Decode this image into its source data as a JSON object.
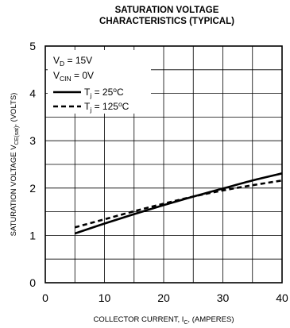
{
  "chart_data": {
    "type": "line",
    "title_line1": "SATURATION VOLTAGE",
    "title_line2": "CHARACTERISTICS (TYPICAL)",
    "xlabel": {
      "prefix": "COLLECTOR CURRENT, I",
      "sub": "C",
      "suffix": ", (AMPERES)"
    },
    "ylabel": {
      "prefix": "SATURATION VOLTAGE V",
      "sub": "CE(sat)",
      "suffix": ", (VOLTS)"
    },
    "xlim": [
      0,
      40
    ],
    "ylim": [
      0,
      5
    ],
    "x_ticks": [
      {
        "value": 0,
        "label": "0"
      },
      {
        "value": 10,
        "label": "10"
      },
      {
        "value": 20,
        "label": "20"
      },
      {
        "value": 30,
        "label": "30"
      },
      {
        "value": 40,
        "label": "40"
      }
    ],
    "y_ticks": [
      {
        "value": 0,
        "label": "0"
      },
      {
        "value": 1,
        "label": "1"
      },
      {
        "value": 2,
        "label": "2"
      },
      {
        "value": 3,
        "label": "3"
      },
      {
        "value": 4,
        "label": "4"
      },
      {
        "value": 5,
        "label": "5"
      }
    ],
    "grid": true,
    "grid_x_step": 5,
    "grid_y_step": 0.5,
    "conditions": [
      {
        "prefix": "V",
        "sub": "D",
        "suffix": " = 15V"
      },
      {
        "prefix": "V",
        "sub": "CIN",
        "suffix": " = 0V"
      }
    ],
    "legend_placement": "top-left",
    "series": [
      {
        "legend_prefix": "T",
        "legend_sub": "j",
        "legend_mid": " = 25",
        "legend_sup": "o",
        "legend_suffix": "C",
        "line_style": "solid",
        "color": "#000000",
        "x": [
          5,
          10,
          15,
          20,
          25,
          30,
          35,
          40
        ],
        "values": [
          1.04,
          1.25,
          1.45,
          1.64,
          1.82,
          1.99,
          2.16,
          2.31
        ]
      },
      {
        "legend_prefix": "T",
        "legend_sub": "j",
        "legend_mid": " = 125",
        "legend_sup": "o",
        "legend_suffix": "C",
        "line_style": "dashed",
        "color": "#000000",
        "x": [
          5,
          10,
          15,
          20,
          25,
          30,
          35,
          40
        ],
        "values": [
          1.17,
          1.34,
          1.51,
          1.67,
          1.82,
          1.95,
          2.06,
          2.16
        ]
      }
    ]
  }
}
